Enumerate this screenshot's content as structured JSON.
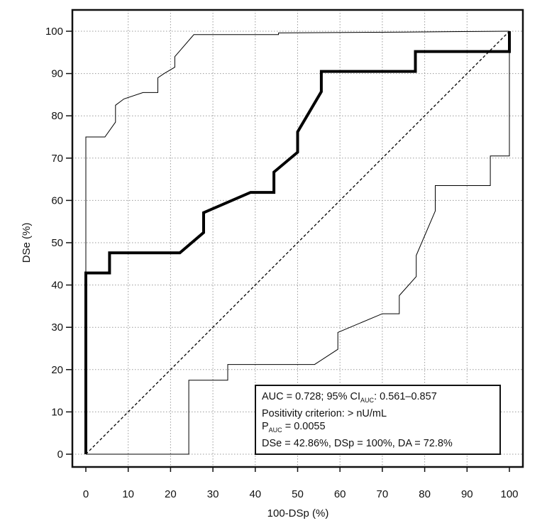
{
  "chart_data": {
    "type": "line",
    "xlabel": "100-DSp (%)",
    "ylabel": "DSe (%)",
    "xlim": [
      0,
      100
    ],
    "ylim": [
      0,
      100
    ],
    "x_ticks": [
      "0",
      "10",
      "20",
      "30",
      "40",
      "50",
      "60",
      "70",
      "80",
      "90",
      "100"
    ],
    "y_ticks": [
      "0",
      "10",
      "20",
      "30",
      "40",
      "50",
      "60",
      "70",
      "80",
      "90",
      "100"
    ],
    "grid": true,
    "series": [
      {
        "name": "ROC curve",
        "style": "thick-solid",
        "color": "#000000",
        "points": [
          [
            0,
            0
          ],
          [
            0,
            42.86
          ],
          [
            5.6,
            42.86
          ],
          [
            5.6,
            47.6
          ],
          [
            22.2,
            47.6
          ],
          [
            27.8,
            52.4
          ],
          [
            27.8,
            57.1
          ],
          [
            38.9,
            61.9
          ],
          [
            44.4,
            61.9
          ],
          [
            44.4,
            66.7
          ],
          [
            50,
            71.4
          ],
          [
            50,
            76.2
          ],
          [
            55.6,
            85.7
          ],
          [
            55.6,
            90.5
          ],
          [
            77.8,
            90.5
          ],
          [
            77.8,
            95.2
          ],
          [
            100,
            95.2
          ],
          [
            100,
            100
          ]
        ]
      },
      {
        "name": "Upper 95% confidence bound",
        "style": "thin-solid",
        "color": "#000000",
        "points": [
          [
            0,
            0
          ],
          [
            0,
            75
          ],
          [
            4.5,
            75
          ],
          [
            7,
            78.5
          ],
          [
            7,
            82.5
          ],
          [
            9,
            84
          ],
          [
            13.5,
            85.5
          ],
          [
            17,
            85.5
          ],
          [
            17,
            89
          ],
          [
            18.5,
            90
          ],
          [
            21,
            91.5
          ],
          [
            21,
            94
          ],
          [
            25.5,
            99.2
          ],
          [
            45.5,
            99.2
          ],
          [
            45.5,
            99.6
          ],
          [
            75,
            99.8
          ],
          [
            100,
            100
          ]
        ]
      },
      {
        "name": "Lower 95% confidence bound",
        "style": "thin-solid",
        "color": "#000000",
        "points": [
          [
            0,
            0
          ],
          [
            24.3,
            0
          ],
          [
            24.3,
            17.5
          ],
          [
            33.5,
            17.5
          ],
          [
            33.5,
            21.2
          ],
          [
            54,
            21.2
          ],
          [
            59.5,
            24.8
          ],
          [
            59.5,
            28.8
          ],
          [
            70,
            33.2
          ],
          [
            74,
            33.2
          ],
          [
            74,
            37.5
          ],
          [
            78,
            42
          ],
          [
            78,
            47
          ],
          [
            82.5,
            57.5
          ],
          [
            82.5,
            63.5
          ],
          [
            95.5,
            63.5
          ],
          [
            95.5,
            70.5
          ],
          [
            100,
            70.5
          ],
          [
            100,
            100
          ]
        ]
      },
      {
        "name": "Reference line",
        "style": "dashed",
        "color": "#000000",
        "points": [
          [
            0,
            0
          ],
          [
            100,
            100
          ]
        ]
      }
    ],
    "annotation": {
      "auc_line": {
        "pre": "AUC = 0.728; 95% CI",
        "sub": "AUC",
        "post": ": 0.561–0.857"
      },
      "criterion_line": "Positivity criterion: > nU/mL",
      "p_line": {
        "pre": "P",
        "sub": "AUC",
        "post": " = 0.0055"
      },
      "stats_line": "DSe = 42.86%, DSp = 100%, DA = 72.8%",
      "position": "bottom-right"
    }
  }
}
